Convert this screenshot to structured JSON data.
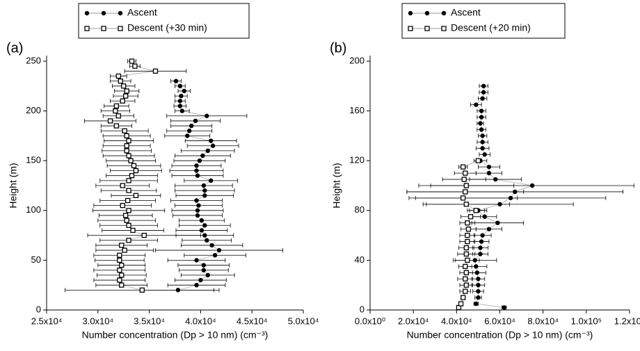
{
  "chart_data": [
    {
      "type": "scatter",
      "title": "(a)",
      "x_label": "Number concentration (Dp > 10 nm) (cm⁻³)",
      "y_label": "Height (m)",
      "xlim": [
        25000,
        50000
      ],
      "xticks": [
        {
          "value": 25000,
          "label": "2.5x10⁴"
        },
        {
          "value": 30000,
          "label": "3.0x10⁴"
        },
        {
          "value": 35000,
          "label": "3.5x10⁴"
        },
        {
          "value": 40000,
          "label": "4.0x10⁴"
        },
        {
          "value": 45000,
          "label": "4.5x10⁴"
        },
        {
          "value": 50000,
          "label": "5.0x10⁴"
        }
      ],
      "ylim": [
        0,
        250
      ],
      "yticks": [
        0,
        50,
        100,
        150,
        200,
        250
      ],
      "series": [
        {
          "name": "Ascent",
          "color": "#000000",
          "marker": "circle",
          "y": [
            20,
            25,
            30,
            35,
            40,
            45,
            50,
            55,
            60,
            65,
            70,
            75,
            80,
            85,
            90,
            95,
            100,
            105,
            110,
            115,
            120,
            125,
            130,
            135,
            140,
            145,
            150,
            155,
            160,
            165,
            170,
            175,
            180,
            185,
            190,
            195,
            200,
            205,
            210,
            215,
            220,
            225,
            230
          ],
          "x": [
            37800,
            39600,
            40000,
            40700,
            40300,
            40300,
            39600,
            41400,
            41800,
            41100,
            40600,
            40400,
            40100,
            40400,
            40100,
            39700,
            39700,
            39800,
            39600,
            40400,
            40400,
            40300,
            41000,
            39700,
            39600,
            39600,
            39900,
            40200,
            40700,
            41200,
            41000,
            38700,
            38900,
            39100,
            39500,
            40600,
            38200,
            38000,
            38000,
            38100,
            38400,
            38000,
            37600
          ],
          "xerr": [
            3500,
            2800,
            2500,
            2600,
            2400,
            2500,
            2800,
            3000,
            6200,
            3000,
            2400,
            2800,
            2500,
            2500,
            2200,
            2400,
            2500,
            2300,
            2500,
            2800,
            2900,
            2800,
            2600,
            2500,
            2600,
            2400,
            2500,
            2700,
            2600,
            2500,
            2500,
            2200,
            2200,
            2000,
            2400,
            3900,
            700,
            600,
            500,
            600,
            600,
            500,
            500
          ]
        },
        {
          "name": "Descent (+30 min)",
          "color": "#000000",
          "marker": "square",
          "y": [
            20,
            25,
            30,
            35,
            40,
            45,
            50,
            55,
            60,
            65,
            70,
            75,
            80,
            85,
            90,
            95,
            100,
            105,
            110,
            115,
            120,
            125,
            130,
            135,
            140,
            145,
            150,
            155,
            160,
            165,
            170,
            175,
            180,
            185,
            190,
            195,
            200,
            205,
            210,
            215,
            220,
            225,
            230,
            235,
            240,
            245,
            250
          ],
          "x": [
            34300,
            32300,
            32100,
            32300,
            32100,
            32300,
            32100,
            32100,
            32600,
            32300,
            33000,
            34500,
            33400,
            33000,
            32800,
            32700,
            33000,
            32400,
            32900,
            33700,
            33000,
            32400,
            33000,
            33300,
            33700,
            33500,
            33200,
            33000,
            32800,
            32800,
            33000,
            32800,
            32600,
            31800,
            31200,
            32000,
            31700,
            31800,
            32400,
            32700,
            32800,
            32500,
            32200,
            32000,
            35600,
            33600,
            33300
          ],
          "xerr": [
            7500,
            2500,
            2500,
            2400,
            2500,
            2300,
            2400,
            2500,
            2800,
            2500,
            2800,
            5500,
            3000,
            2800,
            2800,
            2600,
            3500,
            2800,
            2700,
            2400,
            2700,
            2600,
            2800,
            2500,
            2500,
            2600,
            2400,
            2500,
            2400,
            2300,
            2400,
            2300,
            2300,
            1500,
            2500,
            1500,
            1400,
            1200,
            1200,
            1200,
            1200,
            1100,
            1000,
            800,
            3000,
            500,
            400
          ]
        }
      ]
    },
    {
      "type": "scatter",
      "title": "(b)",
      "x_label": "Number concentration (Dp > 10 nm) (cm⁻³)",
      "y_label": "Height (m)",
      "xlim": [
        0,
        120000
      ],
      "xticks": [
        {
          "value": 0,
          "label": "0.0x10⁰"
        },
        {
          "value": 20000,
          "label": "2.0x10⁴"
        },
        {
          "value": 40000,
          "label": "4.0x10⁴"
        },
        {
          "value": 60000,
          "label": "6.0x10⁴"
        },
        {
          "value": 80000,
          "label": "8.0x10⁴"
        },
        {
          "value": 100000,
          "label": "1.0x10⁵"
        },
        {
          "value": 120000,
          "label": "1.2x10⁵"
        }
      ],
      "ylim": [
        0,
        200
      ],
      "yticks": [
        0,
        40,
        80,
        120,
        160,
        200
      ],
      "series": [
        {
          "name": "Ascent",
          "color": "#000000",
          "marker": "circle",
          "y": [
            2,
            5,
            10,
            15,
            20,
            25,
            30,
            35,
            40,
            45,
            50,
            55,
            60,
            65,
            70,
            75,
            80,
            85,
            90,
            95,
            100,
            105,
            110,
            115,
            120,
            125,
            130,
            135,
            140,
            145,
            150,
            155,
            160,
            165,
            170,
            175,
            180
          ],
          "x": [
            62000,
            49000,
            50000,
            50000,
            50000,
            50000,
            49500,
            49000,
            48500,
            51000,
            51000,
            51500,
            52000,
            55000,
            59000,
            53000,
            50000,
            60000,
            65000,
            67000,
            75000,
            58000,
            55000,
            55000,
            51000,
            53000,
            52000,
            52000,
            52000,
            51500,
            51000,
            51500,
            51500,
            49000,
            52000,
            52500,
            52500
          ],
          "xerr": [
            1000,
            1000,
            1500,
            2500,
            3000,
            3000,
            4000,
            5000,
            10000,
            3500,
            3500,
            3500,
            4000,
            6000,
            12000,
            5500,
            4000,
            34000,
            44000,
            50000,
            47000,
            12000,
            6000,
            5000,
            3000,
            2500,
            3000,
            2500,
            2000,
            2000,
            1500,
            2000,
            2000,
            2500,
            2000,
            2000,
            2000
          ]
        },
        {
          "name": "Descent (+20 min)",
          "color": "#000000",
          "marker": "square",
          "y": [
            2,
            5,
            10,
            15,
            20,
            25,
            30,
            35,
            40,
            45,
            50,
            55,
            60,
            65,
            70,
            75,
            80,
            85,
            90,
            95,
            100,
            105,
            110,
            115,
            120
          ],
          "x": [
            41000,
            42000,
            43000,
            44000,
            44500,
            44000,
            44500,
            44000,
            45000,
            44500,
            44500,
            45000,
            45000,
            45500,
            45000,
            46500,
            49000,
            44500,
            43000,
            44000,
            44500,
            43500,
            44000,
            43000,
            50000
          ],
          "xerr": [
            500,
            500,
            1000,
            2500,
            3000,
            3500,
            3000,
            3000,
            5500,
            4000,
            3500,
            3500,
            3500,
            3500,
            3500,
            4500,
            4000,
            20000,
            25000,
            27000,
            22000,
            10000,
            5000,
            2000,
            1000
          ]
        }
      ]
    }
  ]
}
